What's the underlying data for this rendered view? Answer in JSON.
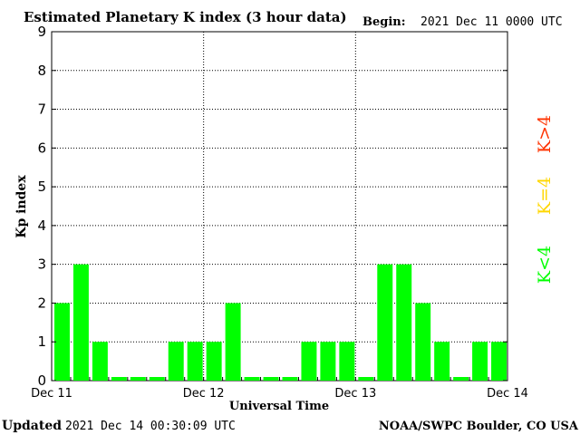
{
  "header": {
    "title": "Estimated Planetary K index (3 hour data)",
    "begin_label": "Begin:",
    "begin_value": "2021 Dec 11 0000 UTC"
  },
  "footer": {
    "updated_label": "Updated",
    "updated_value": "2021 Dec 14 00:30:09 UTC",
    "credit": "NOAA/SWPC Boulder, CO USA"
  },
  "legend": [
    {
      "label": "K<4",
      "color": "#00ff00"
    },
    {
      "label": "K=4",
      "color": "#ffd700"
    },
    {
      "label": "K>4",
      "color": "#ff3300"
    }
  ],
  "chart_data": {
    "type": "bar",
    "title": "Estimated Planetary K index (3 hour data)",
    "xlabel": "Universal Time",
    "ylabel": "Kp index",
    "ylim": [
      0,
      9
    ],
    "y_ticks": [
      "0",
      "1",
      "2",
      "3",
      "4",
      "5",
      "6",
      "7",
      "8",
      "9"
    ],
    "x_tick_labels": [
      "Dec 11",
      "Dec 12",
      "Dec 13",
      "Dec 14"
    ],
    "bars_per_day": 8,
    "values": [
      2,
      3,
      1,
      0,
      0,
      0,
      1,
      1,
      1,
      2,
      0,
      0,
      0,
      1,
      1,
      1,
      0,
      3,
      3,
      2,
      1,
      0,
      1,
      1
    ],
    "grid": true,
    "bar_color": "#00ff00",
    "legend_position": "right"
  }
}
